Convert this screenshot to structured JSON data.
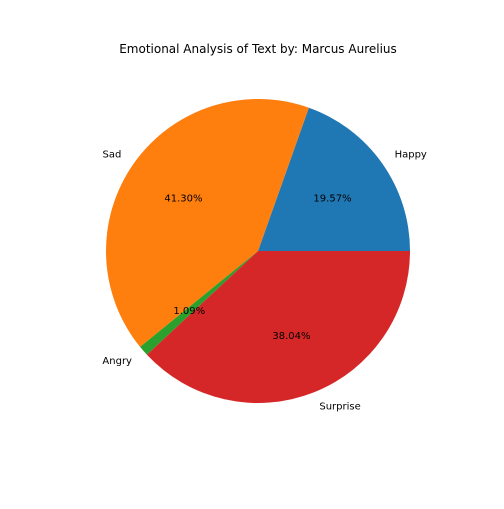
{
  "chart_data": {
    "type": "pie",
    "title": "Emotional Analysis of Text by: Marcus Aurelius",
    "start_angle_deg": 0,
    "direction": "counterclockwise",
    "slices": [
      {
        "label": "Happy",
        "value": 19.57,
        "pct_text": "19.57%",
        "color": "#1f77b4"
      },
      {
        "label": "Sad",
        "value": 41.3,
        "pct_text": "41.30%",
        "color": "#ff7f0e"
      },
      {
        "label": "Angry",
        "value": 1.09,
        "pct_text": "1.09%",
        "color": "#2ca02c"
      },
      {
        "label": "Surprise",
        "value": 38.04,
        "pct_text": "38.04%",
        "color": "#d62728"
      }
    ]
  }
}
